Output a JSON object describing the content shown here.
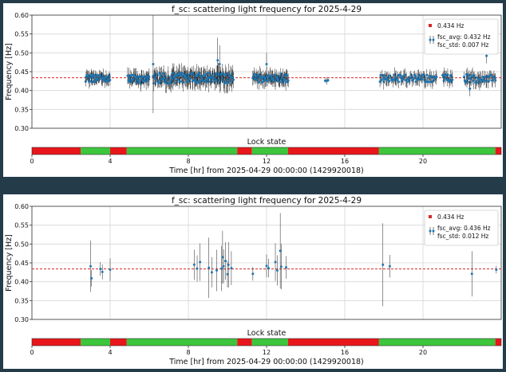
{
  "chart_data": [
    {
      "type": "scatter",
      "title": "f_sc: scattering light frequency for 2025-4-29",
      "xlabel": "Time [hr] from 2025-04-29 00:00:00 (1429920018)",
      "ylabel": "Frequency [Hz]",
      "xlim": [
        0,
        24
      ],
      "ylim": [
        0.3,
        0.6
      ],
      "xticks": [
        "0",
        "4",
        "8",
        "12",
        "16",
        "20"
      ],
      "yticks": [
        "0.30",
        "0.35",
        "0.40",
        "0.45",
        "0.50",
        "0.55",
        "0.60"
      ],
      "grid": true,
      "legend_placement": "top-right",
      "legend": {
        "reference": "0.434 Hz",
        "avg": "fsc_avg: 0.432 Hz",
        "std": "fsc_std: 0.007 Hz"
      },
      "reference_line": 0.434,
      "lock_state_label": "Lock state",
      "lock_state": [
        {
          "start": 0.0,
          "end": 2.5,
          "state": "unlocked"
        },
        {
          "start": 2.5,
          "end": 4.0,
          "state": "locked"
        },
        {
          "start": 4.0,
          "end": 4.85,
          "state": "unlocked"
        },
        {
          "start": 4.85,
          "end": 10.5,
          "state": "locked"
        },
        {
          "start": 10.5,
          "end": 11.25,
          "state": "unlocked"
        },
        {
          "start": 11.25,
          "end": 13.1,
          "state": "locked"
        },
        {
          "start": 13.1,
          "end": 17.75,
          "state": "unlocked"
        },
        {
          "start": 17.75,
          "end": 23.7,
          "state": "locked"
        },
        {
          "start": 23.7,
          "end": 24.0,
          "state": "unlocked"
        }
      ],
      "series": [
        {
          "clusters": [
            {
              "x0": 2.75,
              "x1": 4.0,
              "center": 0.432,
              "spread": 0.01,
              "err": 0.015,
              "n": 55
            },
            {
              "x0": 4.9,
              "x1": 6.0,
              "center": 0.43,
              "spread": 0.012,
              "err": 0.018,
              "n": 50
            },
            {
              "x0": 6.2,
              "x1": 10.3,
              "center": 0.433,
              "spread": 0.014,
              "err": 0.022,
              "n": 170
            },
            {
              "x0": 11.3,
              "x1": 13.1,
              "center": 0.433,
              "spread": 0.012,
              "err": 0.018,
              "n": 75
            },
            {
              "x0": 15.0,
              "x1": 15.15,
              "center": 0.428,
              "spread": 0.005,
              "err": 0.01,
              "n": 3
            },
            {
              "x0": 17.8,
              "x1": 20.7,
              "center": 0.432,
              "spread": 0.01,
              "err": 0.016,
              "n": 80
            },
            {
              "x0": 21.0,
              "x1": 21.5,
              "center": 0.433,
              "spread": 0.01,
              "err": 0.015,
              "n": 18
            },
            {
              "x0": 22.1,
              "x1": 23.7,
              "center": 0.432,
              "spread": 0.012,
              "err": 0.018,
              "n": 45
            }
          ],
          "highlights": [
            {
              "x": 6.2,
              "y": 0.47,
              "err": 0.13
            },
            {
              "x": 9.5,
              "y": 0.48,
              "err": 0.06
            },
            {
              "x": 9.6,
              "y": 0.47,
              "err": 0.05
            },
            {
              "x": 12.0,
              "y": 0.47,
              "err": 0.03
            },
            {
              "x": 23.25,
              "y": 0.492,
              "err": 0.02
            },
            {
              "x": 22.4,
              "y": 0.405,
              "err": 0.02
            }
          ]
        }
      ]
    },
    {
      "type": "scatter",
      "title": "f_sc: scattering light frequency for 2025-4-29",
      "xlabel": "Time [hr] from 2025-04-29 00:00:00 (1429920018)",
      "ylabel": "Frequency [Hz]",
      "xlim": [
        0,
        24
      ],
      "ylim": [
        0.3,
        0.6
      ],
      "xticks": [
        "0",
        "4",
        "8",
        "12",
        "16",
        "20"
      ],
      "yticks": [
        "0.30",
        "0.35",
        "0.40",
        "0.45",
        "0.50",
        "0.55",
        "0.60"
      ],
      "grid": true,
      "legend_placement": "top-right",
      "legend": {
        "reference": "0.434 Hz",
        "avg": "fsc_avg: 0.436 Hz",
        "std": "fsc_std: 0.012 Hz"
      },
      "reference_line": 0.434,
      "lock_state_label": "Lock state",
      "lock_state": [
        {
          "start": 0.0,
          "end": 2.5,
          "state": "unlocked"
        },
        {
          "start": 2.5,
          "end": 4.0,
          "state": "locked"
        },
        {
          "start": 4.0,
          "end": 4.85,
          "state": "unlocked"
        },
        {
          "start": 4.85,
          "end": 10.5,
          "state": "locked"
        },
        {
          "start": 10.5,
          "end": 11.25,
          "state": "unlocked"
        },
        {
          "start": 11.25,
          "end": 13.1,
          "state": "locked"
        },
        {
          "start": 13.1,
          "end": 17.75,
          "state": "unlocked"
        },
        {
          "start": 17.75,
          "end": 23.7,
          "state": "locked"
        },
        {
          "start": 23.7,
          "end": 24.0,
          "state": "unlocked"
        }
      ],
      "series": [
        {
          "points": [
            {
              "x": 3.0,
              "y": 0.441,
              "err": 0.068
            },
            {
              "x": 3.05,
              "y": 0.409,
              "err": 0.022
            },
            {
              "x": 3.5,
              "y": 0.434,
              "err": 0.018
            },
            {
              "x": 3.6,
              "y": 0.426,
              "err": 0.02
            },
            {
              "x": 4.0,
              "y": 0.432,
              "err": 0.03
            },
            {
              "x": 8.3,
              "y": 0.445,
              "err": 0.04
            },
            {
              "x": 8.45,
              "y": 0.435,
              "err": 0.035
            },
            {
              "x": 8.6,
              "y": 0.452,
              "err": 0.05
            },
            {
              "x": 9.05,
              "y": 0.437,
              "err": 0.08
            },
            {
              "x": 9.2,
              "y": 0.425,
              "err": 0.04
            },
            {
              "x": 9.45,
              "y": 0.43,
              "err": 0.055
            },
            {
              "x": 9.7,
              "y": 0.435,
              "err": 0.06
            },
            {
              "x": 9.75,
              "y": 0.465,
              "err": 0.07
            },
            {
              "x": 9.8,
              "y": 0.441,
              "err": 0.045
            },
            {
              "x": 9.9,
              "y": 0.455,
              "err": 0.05
            },
            {
              "x": 10.0,
              "y": 0.42,
              "err": 0.035
            },
            {
              "x": 10.05,
              "y": 0.445,
              "err": 0.06
            },
            {
              "x": 10.2,
              "y": 0.436,
              "err": 0.045
            },
            {
              "x": 11.3,
              "y": 0.421,
              "err": 0.018
            },
            {
              "x": 12.0,
              "y": 0.442,
              "err": 0.03
            },
            {
              "x": 12.1,
              "y": 0.436,
              "err": 0.025
            },
            {
              "x": 12.45,
              "y": 0.452,
              "err": 0.05
            },
            {
              "x": 12.55,
              "y": 0.43,
              "err": 0.04
            },
            {
              "x": 12.7,
              "y": 0.482,
              "err": 0.1
            },
            {
              "x": 12.75,
              "y": 0.44,
              "err": 0.06
            },
            {
              "x": 13.0,
              "y": 0.438,
              "err": 0.03
            },
            {
              "x": 17.95,
              "y": 0.445,
              "err": 0.11
            },
            {
              "x": 18.3,
              "y": 0.441,
              "err": 0.03
            },
            {
              "x": 22.5,
              "y": 0.421,
              "err": 0.06
            },
            {
              "x": 23.75,
              "y": 0.432,
              "err": 0.01
            }
          ]
        }
      ]
    }
  ],
  "colors": {
    "point": "#1f77b4",
    "errorbar": "#222222",
    "reference": "#d62728",
    "locked": "#3cc63c",
    "unlocked": "#e8161b",
    "grid": "#d6d6d6",
    "background": "#243b4a"
  }
}
